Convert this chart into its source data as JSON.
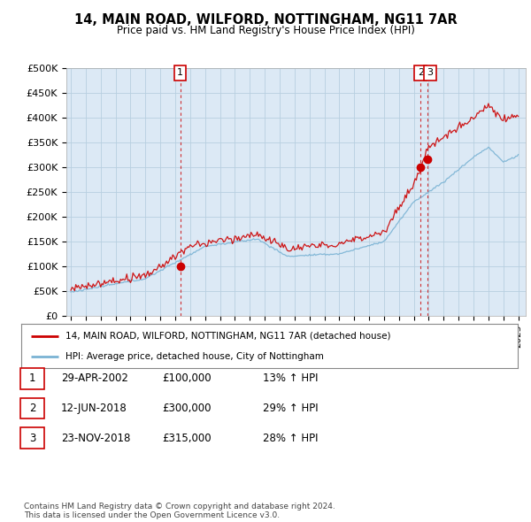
{
  "title": "14, MAIN ROAD, WILFORD, NOTTINGHAM, NG11 7AR",
  "subtitle": "Price paid vs. HM Land Registry's House Price Index (HPI)",
  "ylabel_ticks": [
    "£0",
    "£50K",
    "£100K",
    "£150K",
    "£200K",
    "£250K",
    "£300K",
    "£350K",
    "£400K",
    "£450K",
    "£500K"
  ],
  "ytick_values": [
    0,
    50000,
    100000,
    150000,
    200000,
    250000,
    300000,
    350000,
    400000,
    450000,
    500000
  ],
  "xlim_start": 1994.7,
  "xlim_end": 2025.5,
  "ylim": [
    0,
    500000
  ],
  "red_color": "#cc0000",
  "blue_color": "#7ab3d4",
  "vline_color": "#cc0000",
  "marker_color": "#cc0000",
  "chart_bg_color": "#dce9f5",
  "transactions": [
    {
      "date_num": 2002.33,
      "price": 100000,
      "label": "1"
    },
    {
      "date_num": 2018.45,
      "price": 300000,
      "label": "2"
    },
    {
      "date_num": 2018.9,
      "price": 315000,
      "label": "3"
    }
  ],
  "legend_red_label": "14, MAIN ROAD, WILFORD, NOTTINGHAM, NG11 7AR (detached house)",
  "legend_blue_label": "HPI: Average price, detached house, City of Nottingham",
  "table_rows": [
    [
      "1",
      "29-APR-2002",
      "£100,000",
      "13% ↑ HPI"
    ],
    [
      "2",
      "12-JUN-2018",
      "£300,000",
      "29% ↑ HPI"
    ],
    [
      "3",
      "23-NOV-2018",
      "£315,000",
      "28% ↑ HPI"
    ]
  ],
  "footer": "Contains HM Land Registry data © Crown copyright and database right 2024.\nThis data is licensed under the Open Government Licence v3.0.",
  "background_color": "#ffffff",
  "grid_color": "#b8cfe0"
}
